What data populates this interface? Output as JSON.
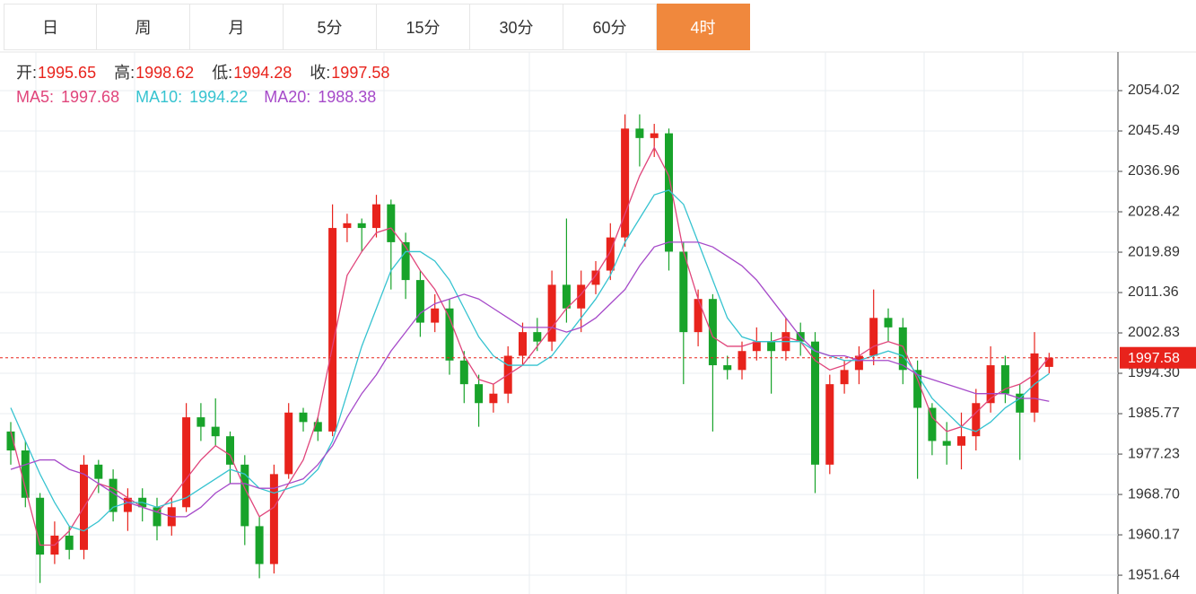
{
  "tabs": [
    "日",
    "周",
    "月",
    "5分",
    "15分",
    "30分",
    "60分",
    "4时"
  ],
  "active_tab": 7,
  "chart_data": {
    "type": "candlestick",
    "ohlc_labels": [
      "开:",
      "高:",
      "低:",
      "收:"
    ],
    "up_color": "#e8231c",
    "down_color": "#18a32a",
    "ylim": [
      1947.67,
      2062.17
    ],
    "yticks": [
      2054.02,
      2045.49,
      2036.96,
      2028.42,
      2019.89,
      2011.36,
      2002.83,
      {
        "value": 1994.3,
        "label": "1994.30"
      },
      1985.77,
      1977.23,
      {
        "value": 1968.7,
        "label": "1968.70"
      },
      1960.17,
      1951.64
    ],
    "grid": true,
    "ohlc": [
      [
        1982,
        1984,
        1975,
        1978
      ],
      [
        1978,
        1980,
        1966,
        1968
      ],
      [
        1968,
        1969,
        1950,
        1956
      ],
      [
        1956,
        1963,
        1954,
        1960
      ],
      [
        1960,
        1962,
        1955,
        1957
      ],
      [
        1957,
        1977,
        1955,
        1975
      ],
      [
        1975,
        1976,
        1969,
        1972
      ],
      [
        1972,
        1974,
        1963,
        1965
      ],
      [
        1965,
        1970,
        1961,
        1968
      ],
      [
        1968,
        1970,
        1963,
        1966
      ],
      [
        1966,
        1968,
        1959,
        1962
      ],
      [
        1962,
        1968,
        1960,
        1966
      ],
      [
        1966,
        1988,
        1965,
        1985
      ],
      [
        1985,
        1988,
        1980,
        1983
      ],
      [
        1983,
        1989,
        1979,
        1981
      ],
      [
        1981,
        1982,
        1971,
        1975
      ],
      [
        1975,
        1977,
        1958,
        1962
      ],
      [
        1962,
        1964,
        1951,
        1954
      ],
      [
        1954,
        1975,
        1952,
        1973
      ],
      [
        1973,
        1988,
        1972,
        1986
      ],
      [
        1986,
        1987,
        1982,
        1984
      ],
      [
        1984,
        1985,
        1980,
        1982
      ],
      [
        1982,
        2030,
        1981,
        2025
      ],
      [
        2025,
        2028,
        2022,
        2026
      ],
      [
        2026,
        2027,
        2020,
        2025
      ],
      [
        2025,
        2032,
        2023,
        2030
      ],
      [
        2030,
        2031,
        2012,
        2022
      ],
      [
        2022,
        2024,
        2010,
        2014
      ],
      [
        2014,
        2016,
        2002,
        2005
      ],
      [
        2005,
        2011,
        2003,
        2008
      ],
      [
        2008,
        2010,
        1994,
        1997
      ],
      [
        1997,
        1999,
        1988,
        1992
      ],
      [
        1992,
        1994,
        1983,
        1988
      ],
      [
        1988,
        1992,
        1986,
        1990
      ],
      [
        1990,
        2000,
        1988,
        1998
      ],
      [
        1998,
        2005,
        1996,
        2003
      ],
      [
        2003,
        2006,
        1999,
        2001
      ],
      [
        2001,
        2016,
        1999,
        2013
      ],
      [
        2013,
        2027,
        2005,
        2008
      ],
      [
        2008,
        2016,
        2003,
        2013
      ],
      [
        2013,
        2018,
        2011,
        2016
      ],
      [
        2016,
        2026,
        2014,
        2023
      ],
      [
        2023,
        2049,
        2021,
        2046
      ],
      [
        2046,
        2049,
        2038,
        2044
      ],
      [
        2044,
        2047,
        2040,
        2045
      ],
      [
        2045,
        2046,
        2016,
        2020
      ],
      [
        2020,
        2022,
        1992,
        2003
      ],
      [
        2003,
        2012,
        2000,
        2010
      ],
      [
        2010,
        2011,
        1982,
        1996
      ],
      [
        1996,
        1998,
        1993,
        1995
      ],
      [
        1995,
        2001,
        1993,
        1999
      ],
      [
        1999,
        2004,
        1997,
        2001
      ],
      [
        2001,
        2003,
        1990,
        1999
      ],
      [
        1999,
        2006,
        1997,
        2003
      ],
      [
        2003,
        2005,
        1998,
        2001
      ],
      [
        2001,
        2003,
        1969,
        1975
      ],
      [
        1975,
        1994,
        1973,
        1992
      ],
      [
        1992,
        1997,
        1990,
        1995
      ],
      [
        1995,
        2000,
        1992,
        1998
      ],
      [
        1998,
        2012,
        1996,
        2006
      ],
      [
        2006,
        2008,
        2001,
        2004
      ],
      [
        2004,
        2006,
        1992,
        1995
      ],
      [
        1995,
        1997,
        1972,
        1987
      ],
      [
        1987,
        1988,
        1977,
        1980
      ],
      [
        1980,
        1984,
        1975,
        1979
      ],
      [
        1979,
        1986,
        1974,
        1981
      ],
      [
        1981,
        1991,
        1978,
        1988
      ],
      [
        1988,
        2000,
        1986,
        1996
      ],
      [
        1996,
        1998,
        1988,
        1990
      ],
      [
        1990,
        1992,
        1976,
        1986
      ],
      [
        1986,
        2003,
        1984,
        1998.5
      ],
      [
        1995.65,
        1998.62,
        1994.28,
        1997.58
      ]
    ],
    "series": [
      {
        "name": "MA5:",
        "color": "#e0457b",
        "values": [
          1982,
          1970,
          1958,
          1958,
          1961,
          1966,
          1971,
          1970,
          1968,
          1966,
          1965,
          1968,
          1972,
          1976,
          1979,
          1977,
          1970,
          1964,
          1966,
          1971,
          1976,
          1985,
          2000,
          2015,
          2020,
          2024,
          2025,
          2021,
          2016,
          2012,
          2006,
          1998,
          1993,
          1992,
          1994,
          1996,
          2000,
          2004,
          2008,
          2011,
          2015,
          2020,
          2028,
          2036,
          2042,
          2036,
          2020,
          2010,
          2002,
          2000,
          2000,
          2001,
          2001,
          2002,
          2001,
          1997,
          1995,
          1996,
          1998,
          2000,
          2001,
          2000,
          1993,
          1985,
          1982,
          1983,
          1986,
          1989,
          1991,
          1992,
          1994,
          1997.68
        ]
      },
      {
        "name": "MA10:",
        "color": "#36c3d0",
        "values": [
          1987,
          1980,
          1973,
          1967,
          1962,
          1961,
          1963,
          1966,
          1967,
          1967,
          1966,
          1967,
          1968,
          1970,
          1972,
          1974,
          1973,
          1970,
          1969,
          1970,
          1971,
          1974,
          1980,
          1990,
          2000,
          2008,
          2016,
          2020,
          2020,
          2018,
          2014,
          2008,
          2002,
          1998,
          1996,
          1996,
          1996,
          1998,
          2002,
          2006,
          2010,
          2015,
          2022,
          2027,
          2032,
          2033,
          2030,
          2022,
          2014,
          2006,
          2002,
          2001,
          2001,
          2001,
          2001,
          1999,
          1998,
          1997,
          1997,
          1998,
          1999,
          1998,
          1994,
          1989,
          1986,
          1983,
          1982,
          1984,
          1987,
          1989,
          1992,
          1994.22
        ]
      },
      {
        "name": "MA20:",
        "color": "#a64ac9",
        "values": [
          1974,
          1975,
          1976,
          1976,
          1974,
          1973,
          1971,
          1969,
          1967,
          1966,
          1965,
          1964,
          1964,
          1966,
          1969,
          1971,
          1971,
          1970,
          1970,
          1971,
          1972,
          1975,
          1979,
          1985,
          1990,
          1994,
          1999,
          2003,
          2007,
          2009,
          2010,
          2011,
          2010,
          2008,
          2006,
          2004,
          2004,
          2004,
          2003,
          2004,
          2006,
          2009,
          2012,
          2017,
          2021,
          2022,
          2022,
          2022,
          2021,
          2019,
          2017,
          2014,
          2010,
          2006,
          2002,
          1999,
          1998,
          1998,
          1997,
          1997,
          1997,
          1996,
          1994,
          1993,
          1992,
          1991,
          1990,
          1990,
          1990,
          1989,
          1989,
          1988.38
        ]
      }
    ]
  }
}
